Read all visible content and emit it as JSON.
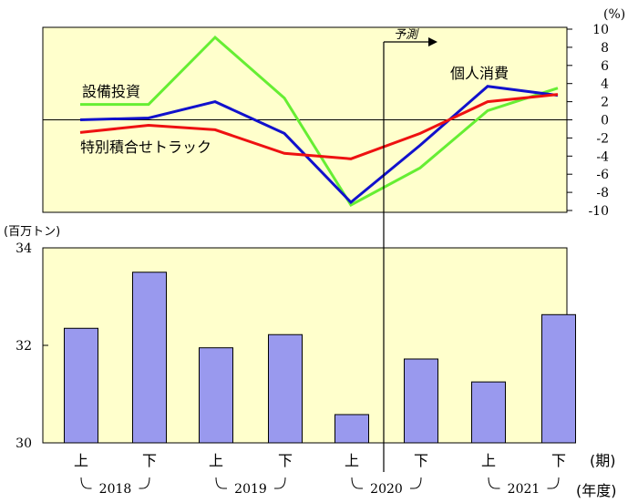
{
  "chart_data": [
    {
      "type": "line",
      "y_unit": "(%)",
      "ylim": [
        -10,
        10
      ],
      "y_ticks": [
        10,
        8,
        6,
        4,
        2,
        0,
        -2,
        -4,
        -6,
        -8,
        -10
      ],
      "x": [
        "2018上",
        "2018下",
        "2019上",
        "2019下",
        "2020上",
        "2020下",
        "2021上",
        "2021下"
      ],
      "forecast_label": "予測",
      "series": [
        {
          "name": "設備投資",
          "color": "#66ee33",
          "values": [
            1.7,
            1.7,
            9.1,
            2.4,
            -9.4,
            -5.3,
            1.0,
            3.5
          ]
        },
        {
          "name": "個人消費",
          "color": "#1111cc",
          "values": [
            0.0,
            0.2,
            2.0,
            -1.5,
            -9.1,
            -2.8,
            3.7,
            2.7
          ]
        },
        {
          "name": "特別積合せトラック",
          "color": "#ee1111",
          "values": [
            -1.4,
            -0.6,
            -1.1,
            -3.7,
            -4.3,
            -1.5,
            2.0,
            2.8
          ]
        }
      ]
    },
    {
      "type": "bar",
      "y_unit": "(百万トン)",
      "ylim": [
        30,
        34
      ],
      "y_ticks": [
        34,
        32,
        30
      ],
      "bar_color": "#9999ee",
      "categories": [
        "上",
        "下",
        "上",
        "下",
        "上",
        "下",
        "上",
        "下"
      ],
      "values": [
        32.35,
        33.5,
        31.95,
        32.22,
        30.58,
        31.72,
        31.25,
        32.63
      ],
      "period_label": "(期)",
      "year_label": "(年度)",
      "years": [
        "2018",
        "2019",
        "2020",
        "2021"
      ]
    }
  ]
}
